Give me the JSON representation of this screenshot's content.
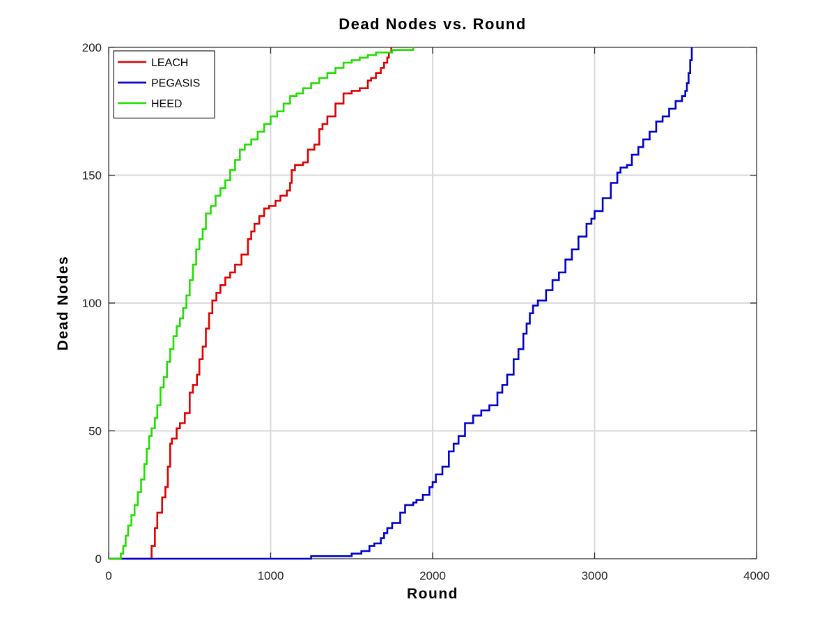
{
  "chart_data": {
    "type": "line",
    "title": "Dead Nodes vs. Round",
    "xlabel": "Round",
    "ylabel": "Dead Nodes",
    "xlim": [
      0,
      4000
    ],
    "ylim": [
      0,
      200
    ],
    "xticks": [
      0,
      1000,
      2000,
      3000,
      4000
    ],
    "yticks": [
      0,
      50,
      100,
      150,
      200
    ],
    "xtick_labels": [
      "0",
      "1000",
      "2000",
      "3000",
      "4000"
    ],
    "ytick_labels": [
      "0",
      "50",
      "100",
      "150",
      "200"
    ],
    "grid": true,
    "legend_position": "top-left",
    "series": [
      {
        "name": "LEACH",
        "color": "#dd0000",
        "x": [
          0,
          255,
          265,
          285,
          300,
          330,
          350,
          365,
          380,
          390,
          420,
          440,
          470,
          500,
          520,
          545,
          560,
          580,
          600,
          620,
          640,
          665,
          690,
          720,
          750,
          780,
          820,
          860,
          880,
          900,
          930,
          960,
          990,
          1030,
          1060,
          1100,
          1120,
          1130,
          1150,
          1200,
          1230,
          1270,
          1300,
          1320,
          1350,
          1400,
          1450,
          1480,
          1500,
          1550,
          1600,
          1620,
          1650,
          1680,
          1700,
          1720,
          1730,
          1745
        ],
        "y": [
          0,
          0,
          5,
          12,
          18,
          24,
          28,
          36,
          45,
          47,
          51,
          53,
          57,
          65,
          68,
          72,
          78,
          83,
          90,
          96,
          101,
          104,
          107,
          110,
          112,
          115,
          119,
          125,
          128,
          131,
          134,
          137,
          138,
          140,
          142,
          144,
          147,
          152,
          154,
          155,
          160,
          162,
          168,
          170,
          173,
          178,
          182,
          182,
          183,
          184,
          187,
          188,
          190,
          192,
          194,
          196,
          198,
          200
        ]
      },
      {
        "name": "PEGASIS",
        "color": "#0000cc",
        "x": [
          0,
          1240,
          1250,
          1500,
          1560,
          1610,
          1640,
          1680,
          1700,
          1720,
          1750,
          1800,
          1830,
          1880,
          1900,
          1940,
          1980,
          2000,
          2020,
          2060,
          2100,
          2130,
          2160,
          2200,
          2250,
          2300,
          2350,
          2400,
          2430,
          2460,
          2500,
          2530,
          2560,
          2580,
          2600,
          2620,
          2650,
          2700,
          2740,
          2780,
          2820,
          2860,
          2900,
          2950,
          2980,
          3000,
          3050,
          3100,
          3140,
          3160,
          3200,
          3230,
          3270,
          3300,
          3340,
          3380,
          3420,
          3460,
          3500,
          3540,
          3560,
          3570,
          3580,
          3590,
          3600
        ],
        "y": [
          0,
          0,
          1,
          2,
          3,
          5,
          6,
          8,
          10,
          12,
          14,
          18,
          21,
          22,
          23,
          25,
          28,
          30,
          33,
          36,
          42,
          45,
          48,
          53,
          56,
          58,
          60,
          65,
          68,
          72,
          78,
          82,
          88,
          92,
          96,
          99,
          101,
          105,
          109,
          112,
          117,
          121,
          126,
          131,
          133,
          136,
          141,
          147,
          151,
          153,
          154,
          158,
          161,
          164,
          167,
          171,
          173,
          176,
          179,
          181,
          183,
          186,
          190,
          195,
          200
        ]
      },
      {
        "name": "HEED",
        "color": "#22dd00",
        "x": [
          0,
          60,
          75,
          90,
          105,
          120,
          140,
          160,
          180,
          200,
          220,
          235,
          250,
          265,
          285,
          300,
          320,
          340,
          360,
          380,
          400,
          420,
          440,
          460,
          480,
          500,
          520,
          540,
          560,
          580,
          600,
          630,
          660,
          690,
          720,
          750,
          780,
          810,
          840,
          880,
          920,
          960,
          1000,
          1040,
          1080,
          1120,
          1160,
          1200,
          1250,
          1300,
          1350,
          1400,
          1450,
          1500,
          1550,
          1600,
          1650,
          1700,
          1750,
          1800,
          1850,
          1880
        ],
        "y": [
          0,
          0,
          2,
          5,
          9,
          13,
          17,
          21,
          26,
          31,
          37,
          43,
          48,
          51,
          55,
          60,
          67,
          71,
          77,
          82,
          87,
          91,
          94,
          98,
          103,
          109,
          115,
          121,
          125,
          129,
          135,
          138,
          142,
          145,
          148,
          152,
          156,
          160,
          162,
          164,
          167,
          170,
          173,
          175,
          178,
          181,
          182,
          184,
          186,
          188,
          190,
          192,
          194,
          195,
          196,
          197,
          198,
          198,
          199,
          199,
          199,
          200
        ]
      }
    ]
  }
}
